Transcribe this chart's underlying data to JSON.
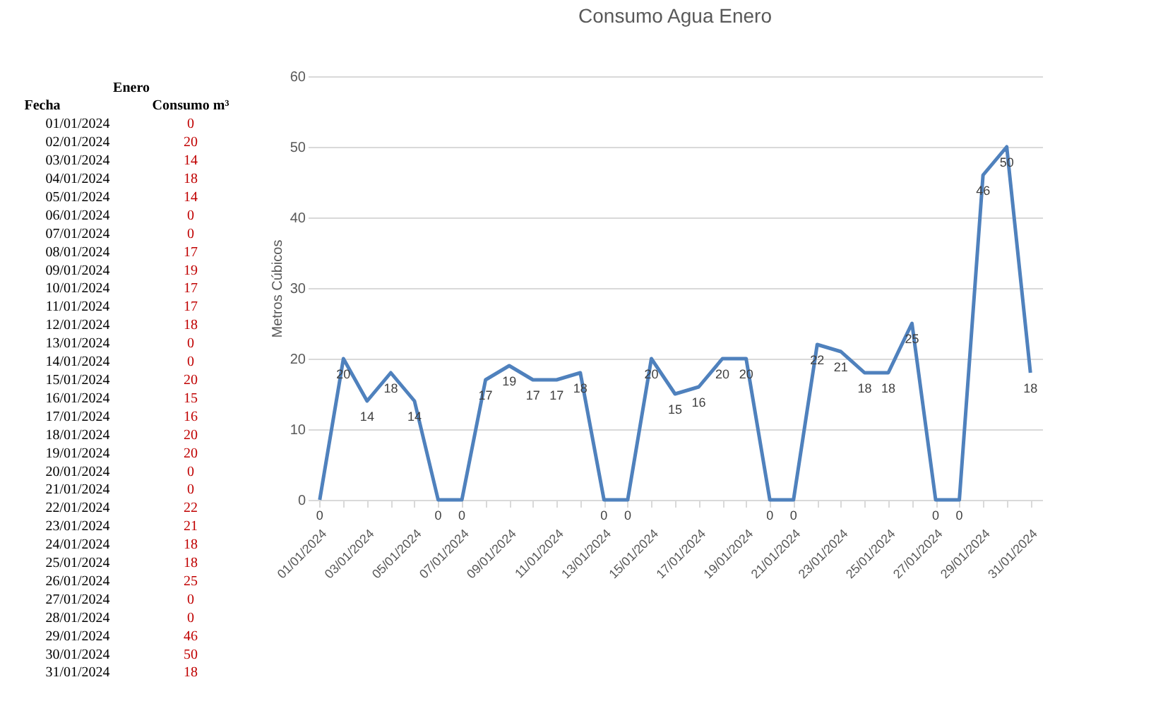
{
  "chart_data": [
    {
      "type": "other",
      "annotations": [
        "Enero",
        "Fecha",
        "Consumo m³"
      ],
      "data_labels": true,
      "categories": [
        "01/01/2024",
        "02/01/2024",
        "03/01/2024",
        "04/01/2024",
        "05/01/2024",
        "06/01/2024",
        "07/01/2024",
        "08/01/2024",
        "09/01/2024",
        "10/01/2024",
        "11/01/2024",
        "12/01/2024",
        "13/01/2024",
        "14/01/2024",
        "15/01/2024",
        "16/01/2024",
        "17/01/2024",
        "18/01/2024",
        "19/01/2024",
        "20/01/2024",
        "21/01/2024",
        "22/01/2024",
        "23/01/2024",
        "24/01/2024",
        "25/01/2024",
        "26/01/2024",
        "27/01/2024",
        "28/01/2024",
        "29/01/2024",
        "30/01/2024",
        "31/01/2024"
      ],
      "values": [
        0,
        20,
        14,
        18,
        14,
        0,
        0,
        17,
        19,
        17,
        17,
        18,
        0,
        0,
        20,
        15,
        16,
        20,
        20,
        0,
        0,
        22,
        21,
        18,
        18,
        25,
        0,
        0,
        46,
        50,
        18
      ]
    },
    {
      "type": "line",
      "title": "Consumo Agua Enero",
      "ylabel": "Metros Cúbicos",
      "categories": [
        "01/01/2024",
        null,
        "03/01/2024",
        null,
        "05/01/2024",
        null,
        "07/01/2024",
        null,
        "09/01/2024",
        null,
        "11/01/2024",
        null,
        "13/01/2024",
        null,
        "15/01/2024",
        null,
        "17/01/2024",
        null,
        "19/01/2024",
        null,
        "21/01/2024",
        null,
        "23/01/2024",
        null,
        "25/01/2024",
        null,
        "27/01/2024",
        null,
        "29/01/2024",
        null,
        "31/01/2024"
      ],
      "series": [
        {
          "color": "#4f81bd",
          "values": [
            0,
            20,
            14,
            18,
            14,
            0,
            0,
            17,
            19,
            17,
            17,
            18,
            0,
            0,
            20,
            15,
            16,
            20,
            20,
            0,
            0,
            22,
            21,
            18,
            18,
            25,
            0,
            0,
            46,
            50,
            18
          ]
        }
      ],
      "ylim": [
        0,
        60
      ],
      "yticks": [
        0,
        10,
        20,
        30,
        40,
        50,
        60
      ],
      "grid": "y",
      "legend": false,
      "marker": "none",
      "line_style": "solid",
      "data_labels": true
    }
  ]
}
